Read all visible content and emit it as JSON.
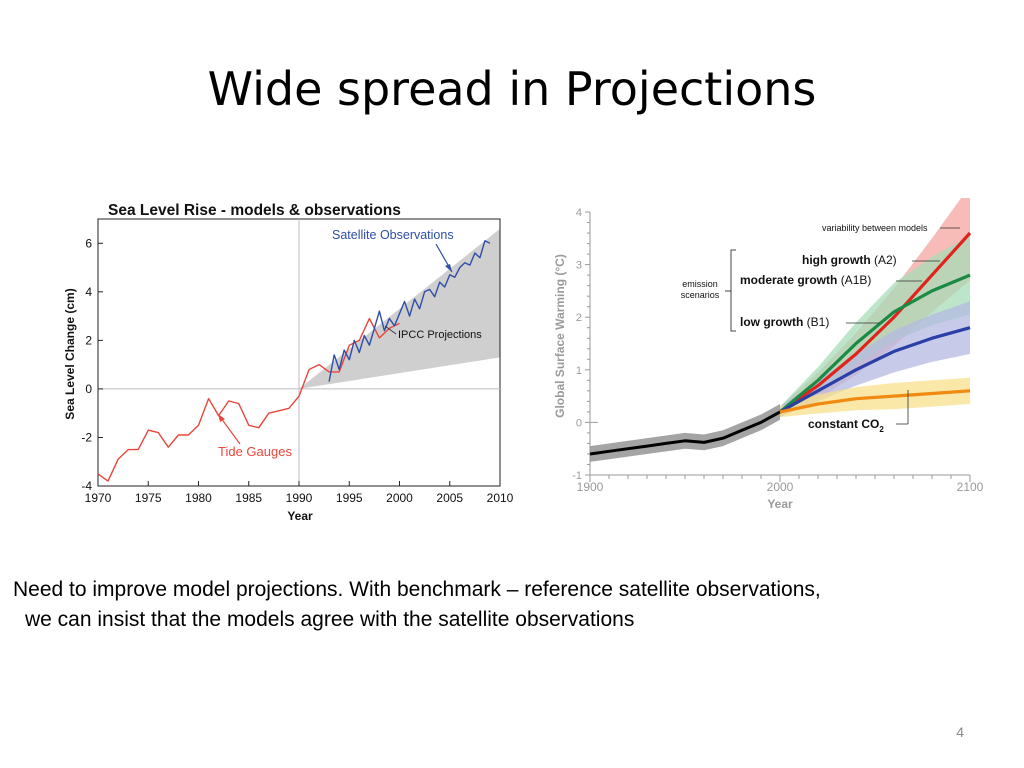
{
  "slide": {
    "title": "Wide spread in Projections",
    "caption_line1": "Need to improve model projections.   With benchmark – reference satellite observations,",
    "caption_line2": "we can insist that the models agree with the satellite observations",
    "slide_number": "4"
  },
  "chart_data": [
    {
      "type": "line",
      "title": "Sea Level Rise - models & observations",
      "xlabel": "Year",
      "ylabel": "Sea Level Change (cm)",
      "xlim": [
        1970,
        2010
      ],
      "ylim": [
        -4,
        7
      ],
      "xticks": [
        "1970",
        "1975",
        "1980",
        "1985",
        "1990",
        "1995",
        "2000",
        "2005",
        "2010"
      ],
      "yticks": [
        "-4",
        "-2",
        "0",
        "2",
        "4",
        "6"
      ],
      "reference_line_x": 1990,
      "grid": false,
      "series": [
        {
          "name": "Tide Gauges",
          "color": "#e8463c",
          "x": [
            1970,
            1971,
            1972,
            1973,
            1974,
            1975,
            1976,
            1977,
            1978,
            1979,
            1980,
            1981,
            1982,
            1983,
            1984,
            1985,
            1986,
            1987,
            1988,
            1989,
            1990,
            1991,
            1992,
            1993,
            1994,
            1995,
            1996,
            1997,
            1998,
            1999,
            2000
          ],
          "values": [
            -3.5,
            -3.8,
            -2.9,
            -2.5,
            -2.5,
            -1.7,
            -1.8,
            -2.4,
            -1.9,
            -1.9,
            -1.5,
            -0.4,
            -1.1,
            -0.5,
            -0.6,
            -1.5,
            -1.6,
            -1.0,
            -0.9,
            -0.8,
            -0.3,
            0.8,
            1.0,
            0.7,
            0.7,
            1.8,
            2.0,
            2.9,
            2.1,
            2.5,
            2.7
          ]
        },
        {
          "name": "Satellite Observations",
          "color": "#2f4ea8",
          "x": [
            1993,
            1993.5,
            1994,
            1994.5,
            1995,
            1995.5,
            1996,
            1996.5,
            1997,
            1997.5,
            1998,
            1998.5,
            1999,
            1999.5,
            2000,
            2000.5,
            2001,
            2001.5,
            2002,
            2002.5,
            2003,
            2003.5,
            2004,
            2004.5,
            2005,
            2005.5,
            2006,
            2006.5,
            2007,
            2007.5,
            2008,
            2008.5,
            2009
          ],
          "values": [
            0.3,
            1.4,
            0.8,
            1.6,
            1.2,
            2.0,
            1.5,
            2.2,
            1.8,
            2.5,
            3.2,
            2.4,
            2.9,
            2.6,
            3.1,
            3.6,
            3.0,
            3.7,
            3.3,
            4.0,
            4.1,
            3.8,
            4.4,
            4.2,
            4.7,
            4.6,
            5.0,
            5.2,
            5.1,
            5.6,
            5.4,
            6.1,
            6.0
          ]
        }
      ],
      "projection_band": {
        "label": "IPCC Projections",
        "color": "#cfcfcf",
        "x": [
          1990,
          2010
        ],
        "lower": [
          0.0,
          1.3
        ],
        "upper": [
          0.0,
          6.6
        ]
      },
      "annotations": [
        "Satellite Observations",
        "IPCC Projections",
        "Tide Gauges"
      ]
    },
    {
      "type": "line",
      "title": "",
      "xlabel": "Year",
      "ylabel": "Global Surface Warming (°C)",
      "xlim": [
        1900,
        2100
      ],
      "ylim": [
        -1,
        4
      ],
      "xticks": [
        "1900",
        "2000",
        "2100"
      ],
      "yticks": [
        "-1",
        "0",
        "1",
        "2",
        "3",
        "4"
      ],
      "grid": false,
      "annotations": [
        "variability between models",
        "emission scenarios"
      ],
      "series": [
        {
          "name": "historical",
          "color": "#000000",
          "band_color": "#9a9a9a",
          "x": [
            1900,
            1910,
            1920,
            1930,
            1940,
            1950,
            1960,
            1970,
            1980,
            1990,
            2000
          ],
          "values": [
            -0.6,
            -0.55,
            -0.5,
            -0.45,
            -0.4,
            -0.35,
            -0.38,
            -0.3,
            -0.15,
            0.0,
            0.2
          ]
        },
        {
          "name": "high growth (A2)",
          "label_main": "high growth",
          "label_paren": "(A2)",
          "color": "#e0241c",
          "band_color": "#f4a6a0",
          "x": [
            2000,
            2020,
            2040,
            2060,
            2080,
            2100
          ],
          "values": [
            0.2,
            0.7,
            1.3,
            2.0,
            2.8,
            3.6
          ],
          "spread": [
            0.1,
            0.25,
            0.4,
            0.55,
            0.7,
            0.9
          ]
        },
        {
          "name": "moderate growth (A1B)",
          "label_main": "moderate growth",
          "label_paren": "(A1B)",
          "color": "#1a8a44",
          "band_color": "#a7dcb7",
          "x": [
            2000,
            2020,
            2040,
            2060,
            2080,
            2100
          ],
          "values": [
            0.2,
            0.8,
            1.5,
            2.1,
            2.5,
            2.8
          ],
          "spread": [
            0.1,
            0.25,
            0.4,
            0.55,
            0.65,
            0.75
          ]
        },
        {
          "name": "low growth (B1)",
          "label_main": "low growth",
          "label_paren": "(B1)",
          "color": "#2b3fa8",
          "band_color": "#b4b9e2",
          "x": [
            2000,
            2020,
            2040,
            2060,
            2080,
            2100
          ],
          "values": [
            0.2,
            0.6,
            1.0,
            1.35,
            1.6,
            1.8
          ],
          "spread": [
            0.1,
            0.2,
            0.3,
            0.4,
            0.45,
            0.5
          ]
        },
        {
          "name": "constant CO2",
          "label_main": "constant CO",
          "label_sub": "2",
          "color": "#f08a10",
          "band_color": "#f7e08a",
          "x": [
            2000,
            2020,
            2040,
            2060,
            2080,
            2100
          ],
          "values": [
            0.2,
            0.35,
            0.45,
            0.5,
            0.55,
            0.6
          ],
          "spread": [
            0.1,
            0.18,
            0.22,
            0.25,
            0.25,
            0.25
          ]
        }
      ]
    }
  ]
}
